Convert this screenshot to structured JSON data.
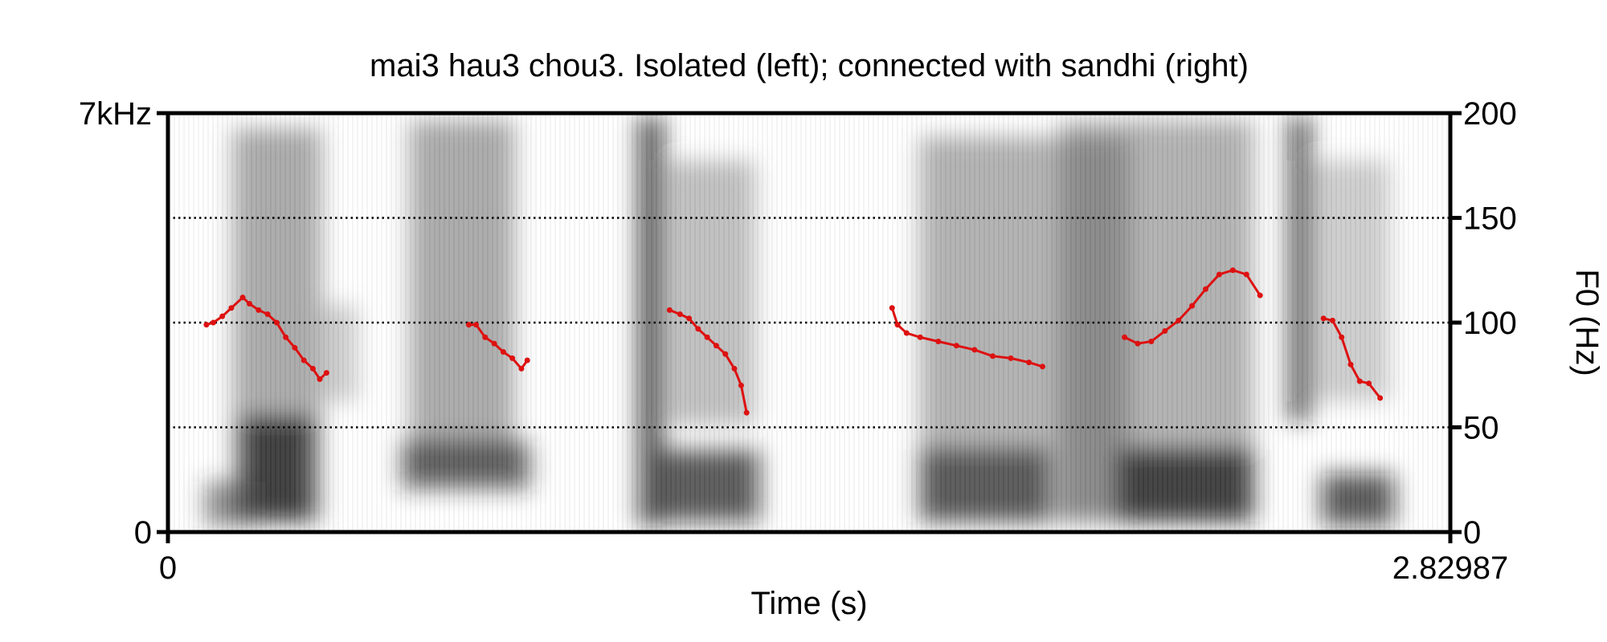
{
  "chart_data": {
    "type": "line",
    "title": "mai3 hau3 chou3. Isolated (left); connected with sandhi (right)",
    "xlabel": "Time (s)",
    "y2label": "F0 (Hz)",
    "xlim": [
      0,
      2.82987
    ],
    "xticks": [
      0,
      2.82987
    ],
    "ylim": [
      0,
      7000
    ],
    "yticks": [
      0,
      {
        "value": 7000,
        "label": "7kHz"
      }
    ],
    "y2lim": [
      0,
      200
    ],
    "y2ticks": [
      0,
      50,
      100,
      150,
      200
    ],
    "grid": true,
    "x": [
      0.085,
      0.1,
      0.12,
      0.14,
      0.165,
      0.18,
      0.2,
      0.22,
      0.24,
      0.26,
      0.28,
      0.3,
      0.32,
      0.335,
      0.35,
      0.5,
      0.664,
      0.68,
      0.7,
      0.72,
      0.74,
      0.76,
      0.78,
      0.793,
      0.95,
      1.107,
      1.13,
      1.15,
      1.17,
      1.19,
      1.21,
      1.23,
      1.25,
      1.265,
      1.277,
      1.45,
      1.598,
      1.61,
      1.63,
      1.66,
      1.7,
      1.74,
      1.78,
      1.82,
      1.86,
      1.9,
      1.93,
      2.02,
      2.111,
      2.14,
      2.17,
      2.2,
      2.23,
      2.26,
      2.29,
      2.32,
      2.35,
      2.38,
      2.41,
      2.48,
      2.55,
      2.57,
      2.59,
      2.61,
      2.63,
      2.65,
      2.675
    ],
    "series": [
      {
        "color": "#dd1111",
        "axis": "y2",
        "values": [
          99,
          100,
          103,
          107,
          112,
          109,
          106,
          104,
          100,
          93,
          88,
          82,
          78,
          73,
          76,
          null,
          99,
          99,
          93,
          90,
          86,
          83,
          78,
          82,
          null,
          106,
          104,
          102,
          97,
          93,
          89,
          85,
          78,
          70,
          57,
          null,
          107,
          99,
          95,
          93,
          91,
          89,
          87,
          84,
          83,
          81,
          79,
          null,
          93,
          90,
          91,
          96,
          101,
          108,
          116,
          123,
          125,
          123,
          113,
          null,
          102,
          101,
          93,
          80,
          72,
          71,
          64
        ]
      }
    ]
  }
}
